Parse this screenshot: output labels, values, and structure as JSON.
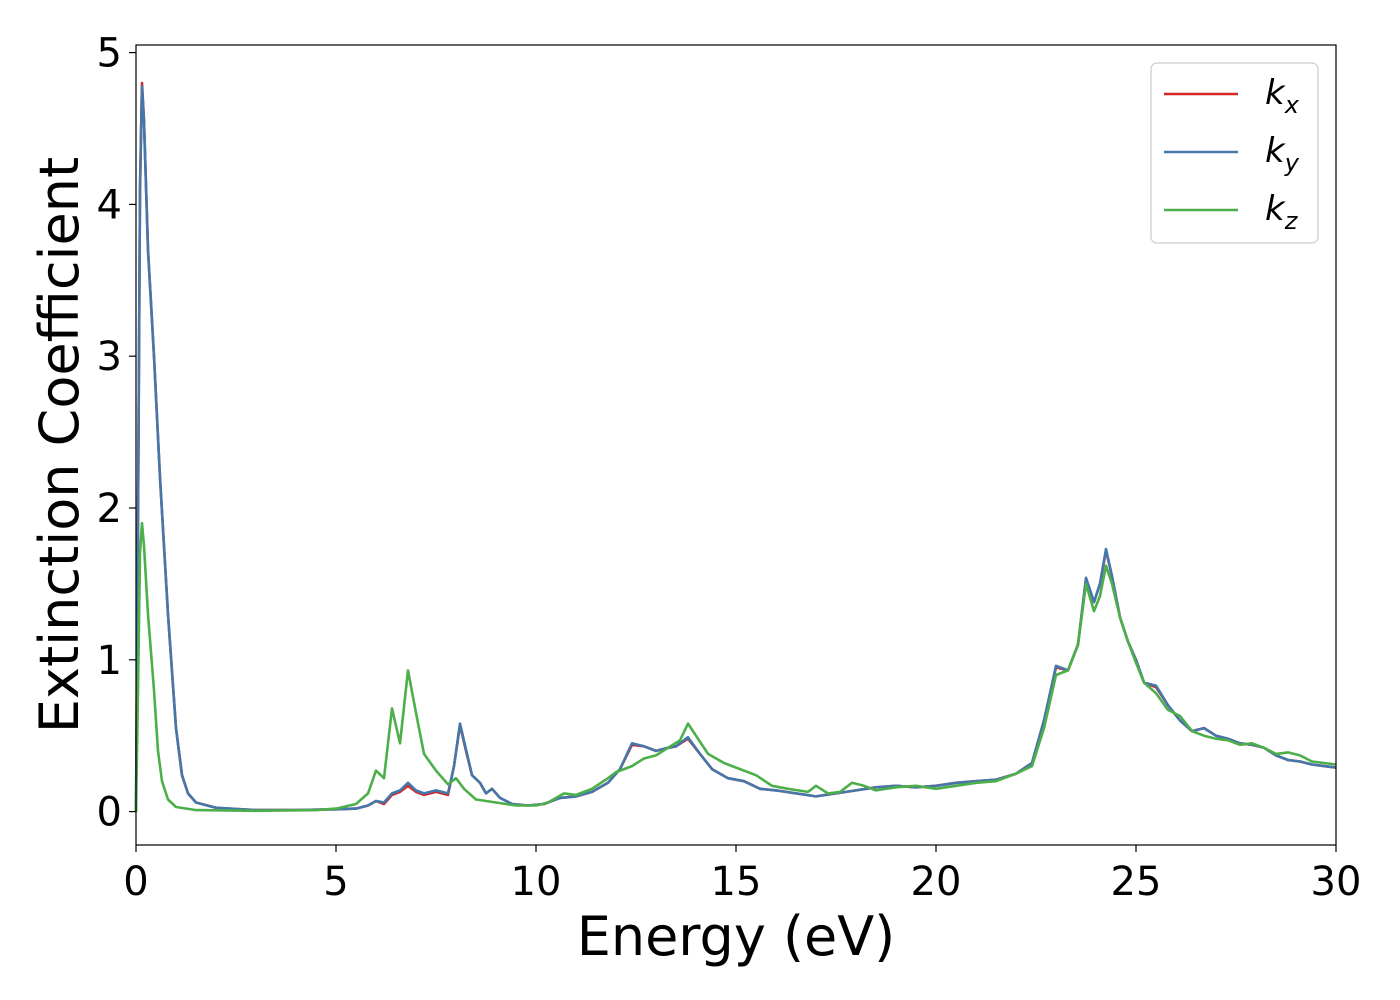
{
  "chart_data": {
    "type": "line",
    "title": "",
    "xlabel": "Energy (eV)",
    "ylabel": "Extinction Coefficient",
    "xlim": [
      0,
      30
    ],
    "ylim": [
      -0.22,
      5.05
    ],
    "xticks": [
      0,
      5,
      10,
      15,
      20,
      25,
      30
    ],
    "yticks": [
      0,
      1,
      2,
      3,
      4,
      5
    ],
    "grid": false,
    "legend_position": "top-right",
    "series": [
      {
        "name": "k",
        "subscript": "x",
        "color": "#d62728",
        "points": [
          [
            0.0,
            0.0
          ],
          [
            0.05,
            1.9
          ],
          [
            0.1,
            4.1
          ],
          [
            0.15,
            4.8
          ],
          [
            0.2,
            4.55
          ],
          [
            0.3,
            3.7
          ],
          [
            0.45,
            3.0
          ],
          [
            0.6,
            2.2
          ],
          [
            0.8,
            1.3
          ],
          [
            1.0,
            0.55
          ],
          [
            1.15,
            0.24
          ],
          [
            1.3,
            0.12
          ],
          [
            1.5,
            0.06
          ],
          [
            2.0,
            0.025
          ],
          [
            3.0,
            0.01
          ],
          [
            4.0,
            0.01
          ],
          [
            5.0,
            0.015
          ],
          [
            5.5,
            0.02
          ],
          [
            5.8,
            0.04
          ],
          [
            6.0,
            0.07
          ],
          [
            6.2,
            0.05
          ],
          [
            6.4,
            0.11
          ],
          [
            6.6,
            0.13
          ],
          [
            6.8,
            0.17
          ],
          [
            7.0,
            0.13
          ],
          [
            7.2,
            0.11
          ],
          [
            7.5,
            0.13
          ],
          [
            7.8,
            0.11
          ],
          [
            7.95,
            0.3
          ],
          [
            8.1,
            0.57
          ],
          [
            8.25,
            0.4
          ],
          [
            8.4,
            0.24
          ],
          [
            8.6,
            0.19
          ],
          [
            8.75,
            0.12
          ],
          [
            8.9,
            0.15
          ],
          [
            9.1,
            0.09
          ],
          [
            9.4,
            0.05
          ],
          [
            9.8,
            0.04
          ],
          [
            10.2,
            0.05
          ],
          [
            10.6,
            0.09
          ],
          [
            11.0,
            0.1
          ],
          [
            11.4,
            0.13
          ],
          [
            11.8,
            0.19
          ],
          [
            12.1,
            0.28
          ],
          [
            12.4,
            0.44
          ],
          [
            12.7,
            0.43
          ],
          [
            13.0,
            0.4
          ],
          [
            13.3,
            0.42
          ],
          [
            13.5,
            0.43
          ],
          [
            13.8,
            0.48
          ],
          [
            14.1,
            0.38
          ],
          [
            14.4,
            0.28
          ],
          [
            14.8,
            0.22
          ],
          [
            15.2,
            0.2
          ],
          [
            15.6,
            0.15
          ],
          [
            16.0,
            0.14
          ],
          [
            16.5,
            0.12
          ],
          [
            17.0,
            0.1
          ],
          [
            17.5,
            0.12
          ],
          [
            18.0,
            0.14
          ],
          [
            18.5,
            0.16
          ],
          [
            19.0,
            0.17
          ],
          [
            19.5,
            0.16
          ],
          [
            20.0,
            0.17
          ],
          [
            20.5,
            0.19
          ],
          [
            21.0,
            0.2
          ],
          [
            21.5,
            0.21
          ],
          [
            22.0,
            0.25
          ],
          [
            22.4,
            0.32
          ],
          [
            22.7,
            0.6
          ],
          [
            23.0,
            0.95
          ],
          [
            23.3,
            0.93
          ],
          [
            23.55,
            1.1
          ],
          [
            23.75,
            1.53
          ],
          [
            23.95,
            1.38
          ],
          [
            24.1,
            1.5
          ],
          [
            24.25,
            1.72
          ],
          [
            24.4,
            1.55
          ],
          [
            24.6,
            1.28
          ],
          [
            24.8,
            1.12
          ],
          [
            25.0,
            1.0
          ],
          [
            25.2,
            0.85
          ],
          [
            25.5,
            0.82
          ],
          [
            25.8,
            0.7
          ],
          [
            26.1,
            0.6
          ],
          [
            26.4,
            0.53
          ],
          [
            26.7,
            0.55
          ],
          [
            27.0,
            0.5
          ],
          [
            27.3,
            0.48
          ],
          [
            27.6,
            0.45
          ],
          [
            27.9,
            0.44
          ],
          [
            28.2,
            0.42
          ],
          [
            28.5,
            0.37
          ],
          [
            28.8,
            0.34
          ],
          [
            29.1,
            0.33
          ],
          [
            29.4,
            0.31
          ],
          [
            29.7,
            0.3
          ],
          [
            30.0,
            0.29
          ]
        ]
      },
      {
        "name": "k",
        "subscript": "y",
        "color": "#4477aa",
        "points": [
          [
            0.0,
            0.0
          ],
          [
            0.05,
            1.9
          ],
          [
            0.1,
            4.1
          ],
          [
            0.15,
            4.78
          ],
          [
            0.2,
            4.55
          ],
          [
            0.3,
            3.7
          ],
          [
            0.45,
            3.0
          ],
          [
            0.6,
            2.2
          ],
          [
            0.8,
            1.3
          ],
          [
            1.0,
            0.55
          ],
          [
            1.15,
            0.24
          ],
          [
            1.3,
            0.12
          ],
          [
            1.5,
            0.06
          ],
          [
            2.0,
            0.025
          ],
          [
            3.0,
            0.01
          ],
          [
            4.0,
            0.01
          ],
          [
            5.0,
            0.015
          ],
          [
            5.5,
            0.02
          ],
          [
            5.8,
            0.04
          ],
          [
            6.0,
            0.07
          ],
          [
            6.2,
            0.06
          ],
          [
            6.4,
            0.12
          ],
          [
            6.6,
            0.14
          ],
          [
            6.8,
            0.19
          ],
          [
            7.0,
            0.14
          ],
          [
            7.2,
            0.12
          ],
          [
            7.5,
            0.14
          ],
          [
            7.8,
            0.12
          ],
          [
            7.95,
            0.3
          ],
          [
            8.1,
            0.58
          ],
          [
            8.25,
            0.41
          ],
          [
            8.4,
            0.24
          ],
          [
            8.6,
            0.19
          ],
          [
            8.75,
            0.12
          ],
          [
            8.9,
            0.15
          ],
          [
            9.1,
            0.09
          ],
          [
            9.4,
            0.05
          ],
          [
            9.8,
            0.04
          ],
          [
            10.2,
            0.05
          ],
          [
            10.6,
            0.09
          ],
          [
            11.0,
            0.1
          ],
          [
            11.4,
            0.13
          ],
          [
            11.8,
            0.19
          ],
          [
            12.1,
            0.28
          ],
          [
            12.4,
            0.45
          ],
          [
            12.7,
            0.43
          ],
          [
            13.0,
            0.4
          ],
          [
            13.3,
            0.42
          ],
          [
            13.5,
            0.43
          ],
          [
            13.8,
            0.49
          ],
          [
            14.1,
            0.38
          ],
          [
            14.4,
            0.28
          ],
          [
            14.8,
            0.22
          ],
          [
            15.2,
            0.2
          ],
          [
            15.6,
            0.15
          ],
          [
            16.0,
            0.14
          ],
          [
            16.5,
            0.12
          ],
          [
            17.0,
            0.1
          ],
          [
            17.5,
            0.12
          ],
          [
            18.0,
            0.14
          ],
          [
            18.5,
            0.16
          ],
          [
            19.0,
            0.17
          ],
          [
            19.5,
            0.16
          ],
          [
            20.0,
            0.17
          ],
          [
            20.5,
            0.19
          ],
          [
            21.0,
            0.2
          ],
          [
            21.5,
            0.21
          ],
          [
            22.0,
            0.25
          ],
          [
            22.4,
            0.32
          ],
          [
            22.7,
            0.6
          ],
          [
            23.0,
            0.96
          ],
          [
            23.3,
            0.93
          ],
          [
            23.55,
            1.1
          ],
          [
            23.75,
            1.54
          ],
          [
            23.95,
            1.38
          ],
          [
            24.1,
            1.5
          ],
          [
            24.25,
            1.73
          ],
          [
            24.4,
            1.55
          ],
          [
            24.6,
            1.28
          ],
          [
            24.8,
            1.12
          ],
          [
            25.0,
            1.0
          ],
          [
            25.2,
            0.85
          ],
          [
            25.5,
            0.83
          ],
          [
            25.8,
            0.7
          ],
          [
            26.1,
            0.6
          ],
          [
            26.4,
            0.53
          ],
          [
            26.7,
            0.55
          ],
          [
            27.0,
            0.5
          ],
          [
            27.3,
            0.48
          ],
          [
            27.6,
            0.45
          ],
          [
            27.9,
            0.44
          ],
          [
            28.2,
            0.42
          ],
          [
            28.5,
            0.37
          ],
          [
            28.8,
            0.34
          ],
          [
            29.1,
            0.33
          ],
          [
            29.4,
            0.31
          ],
          [
            29.7,
            0.3
          ],
          [
            30.0,
            0.29
          ]
        ]
      },
      {
        "name": "k",
        "subscript": "z",
        "color": "#4daf4a",
        "points": [
          [
            0.0,
            0.0
          ],
          [
            0.05,
            0.8
          ],
          [
            0.1,
            1.7
          ],
          [
            0.15,
            1.9
          ],
          [
            0.2,
            1.75
          ],
          [
            0.3,
            1.3
          ],
          [
            0.45,
            0.8
          ],
          [
            0.55,
            0.4
          ],
          [
            0.65,
            0.2
          ],
          [
            0.8,
            0.08
          ],
          [
            1.0,
            0.03
          ],
          [
            1.5,
            0.01
          ],
          [
            3.0,
            0.005
          ],
          [
            4.5,
            0.01
          ],
          [
            5.0,
            0.02
          ],
          [
            5.5,
            0.05
          ],
          [
            5.8,
            0.12
          ],
          [
            6.0,
            0.27
          ],
          [
            6.2,
            0.22
          ],
          [
            6.4,
            0.68
          ],
          [
            6.6,
            0.45
          ],
          [
            6.8,
            0.93
          ],
          [
            7.0,
            0.65
          ],
          [
            7.2,
            0.38
          ],
          [
            7.5,
            0.27
          ],
          [
            7.8,
            0.18
          ],
          [
            8.0,
            0.22
          ],
          [
            8.2,
            0.15
          ],
          [
            8.5,
            0.08
          ],
          [
            9.0,
            0.06
          ],
          [
            9.5,
            0.04
          ],
          [
            10.0,
            0.04
          ],
          [
            10.3,
            0.06
          ],
          [
            10.7,
            0.12
          ],
          [
            11.0,
            0.11
          ],
          [
            11.4,
            0.15
          ],
          [
            11.8,
            0.22
          ],
          [
            12.0,
            0.26
          ],
          [
            12.4,
            0.3
          ],
          [
            12.7,
            0.35
          ],
          [
            13.0,
            0.37
          ],
          [
            13.3,
            0.42
          ],
          [
            13.6,
            0.47
          ],
          [
            13.8,
            0.58
          ],
          [
            14.0,
            0.5
          ],
          [
            14.3,
            0.38
          ],
          [
            14.7,
            0.32
          ],
          [
            15.1,
            0.28
          ],
          [
            15.5,
            0.24
          ],
          [
            15.9,
            0.17
          ],
          [
            16.3,
            0.15
          ],
          [
            16.8,
            0.13
          ],
          [
            17.0,
            0.17
          ],
          [
            17.3,
            0.12
          ],
          [
            17.6,
            0.13
          ],
          [
            17.9,
            0.19
          ],
          [
            18.2,
            0.17
          ],
          [
            18.5,
            0.14
          ],
          [
            19.0,
            0.16
          ],
          [
            19.5,
            0.17
          ],
          [
            20.0,
            0.15
          ],
          [
            20.5,
            0.17
          ],
          [
            21.0,
            0.19
          ],
          [
            21.5,
            0.2
          ],
          [
            22.0,
            0.25
          ],
          [
            22.4,
            0.3
          ],
          [
            22.7,
            0.55
          ],
          [
            23.0,
            0.9
          ],
          [
            23.3,
            0.93
          ],
          [
            23.55,
            1.1
          ],
          [
            23.75,
            1.5
          ],
          [
            23.95,
            1.32
          ],
          [
            24.1,
            1.42
          ],
          [
            24.25,
            1.62
          ],
          [
            24.4,
            1.5
          ],
          [
            24.6,
            1.28
          ],
          [
            24.8,
            1.12
          ],
          [
            25.0,
            0.98
          ],
          [
            25.2,
            0.85
          ],
          [
            25.5,
            0.78
          ],
          [
            25.8,
            0.67
          ],
          [
            26.1,
            0.63
          ],
          [
            26.4,
            0.53
          ],
          [
            26.7,
            0.5
          ],
          [
            27.0,
            0.48
          ],
          [
            27.3,
            0.47
          ],
          [
            27.6,
            0.44
          ],
          [
            27.9,
            0.45
          ],
          [
            28.2,
            0.42
          ],
          [
            28.5,
            0.38
          ],
          [
            28.8,
            0.39
          ],
          [
            29.1,
            0.37
          ],
          [
            29.4,
            0.33
          ],
          [
            29.7,
            0.32
          ],
          [
            30.0,
            0.31
          ]
        ]
      }
    ]
  }
}
